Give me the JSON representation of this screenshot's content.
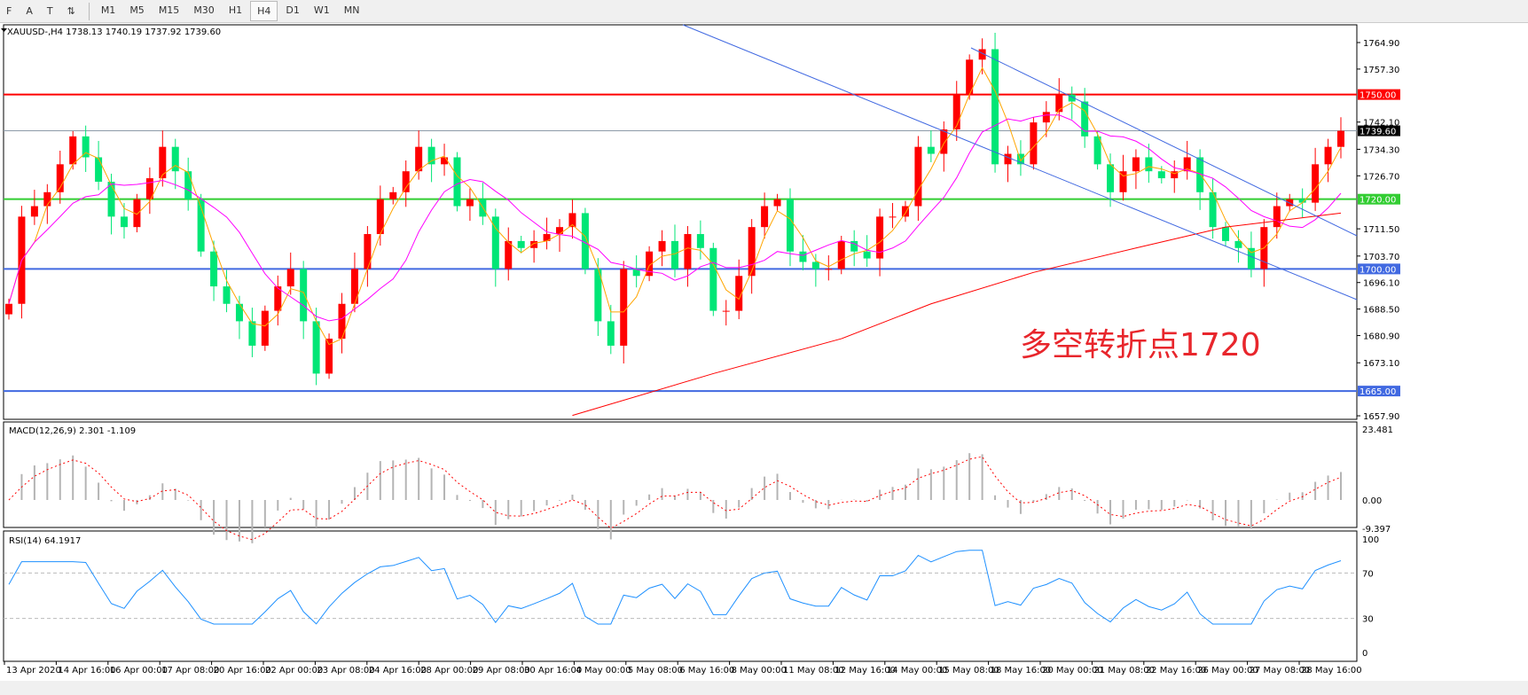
{
  "toolbar": {
    "tools": [
      "F",
      "A",
      "T",
      "⇅"
    ],
    "timeframes": [
      "M1",
      "M5",
      "M15",
      "M30",
      "H1",
      "H4",
      "D1",
      "W1",
      "MN"
    ],
    "active": "H4"
  },
  "chart_title": "XAUUSD-,H4  1738.13 1740.19 1737.92 1739.60",
  "annotation": "多空转折点1720",
  "chart_data": [
    {
      "type": "candlestick",
      "symbol": "XAUUSD-",
      "timeframe": "H4",
      "ohlc_last": [
        1738.13,
        1740.19,
        1737.92,
        1739.6
      ],
      "price_ticks": [
        "1764.90",
        "1757.30",
        "1742.10",
        "1734.30",
        "1726.70",
        "1711.50",
        "1703.70",
        "1696.10",
        "1688.50",
        "1680.90",
        "1673.10",
        "1657.90"
      ],
      "ylim": [
        1656,
        1770
      ],
      "levels": [
        {
          "price": "1750.00",
          "color": "#ff0000"
        },
        {
          "price": "1739.60",
          "color": "#000000",
          "current": true
        },
        {
          "price": "1720.00",
          "color": "#32cd32"
        },
        {
          "price": "1700.00",
          "color": "#4169e1"
        },
        {
          "price": "1665.00",
          "color": "#4169e1"
        }
      ],
      "colors": {
        "up": "#ff0000",
        "down": "#00e676",
        "ma_fast": "#ffa500",
        "ma_mid": "#ff00ff",
        "ma_slow": "#ff0000",
        "trend": "#4169e1"
      },
      "closes": [
        1690,
        1715,
        1718,
        1722,
        1730,
        1738,
        1732,
        1725,
        1715,
        1712,
        1720,
        1726,
        1735,
        1728,
        1720,
        1705,
        1695,
        1690,
        1685,
        1678,
        1688,
        1695,
        1700,
        1685,
        1670,
        1680,
        1690,
        1700,
        1710,
        1720,
        1722,
        1728,
        1735,
        1730,
        1732,
        1718,
        1720,
        1715,
        1700,
        1708,
        1706,
        1708,
        1710,
        1712,
        1716,
        1700,
        1685,
        1678,
        1700,
        1698,
        1705,
        1708,
        1700,
        1710,
        1706,
        1688,
        1688,
        1698,
        1712,
        1718,
        1720,
        1705,
        1702,
        1700,
        1700,
        1708,
        1705,
        1703,
        1715,
        1715,
        1718,
        1735,
        1733,
        1740,
        1750,
        1760,
        1763,
        1730,
        1733,
        1730,
        1742,
        1745,
        1750,
        1748,
        1738,
        1730,
        1722,
        1728,
        1732,
        1728,
        1726,
        1728,
        1732,
        1722,
        1712,
        1708,
        1706,
        1700,
        1712,
        1718,
        1720,
        1719,
        1730,
        1735,
        1739.6
      ],
      "ma_slow": [
        [
          44,
          1658
        ],
        [
          55,
          1670
        ],
        [
          65,
          1680
        ],
        [
          72,
          1690
        ],
        [
          80,
          1699
        ],
        [
          88,
          1706
        ],
        [
          95,
          1712
        ],
        [
          104,
          1716
        ]
      ],
      "xticks": [
        "13 Apr 2020",
        "14 Apr 16:00",
        "16 Apr 00:00",
        "17 Apr 08:00",
        "20 Apr 16:00",
        "22 Apr 00:00",
        "23 Apr 08:00",
        "24 Apr 16:00",
        "28 Apr 00:00",
        "29 Apr 08:00",
        "30 Apr 16:00",
        "4 May 00:00",
        "5 May 08:00",
        "6 May 16:00",
        "8 May 00:00",
        "11 May 08:00",
        "12 May 16:00",
        "14 May 00:00",
        "15 May 08:00",
        "18 May 16:00",
        "20 May 00:00",
        "21 May 08:00",
        "22 May 16:00",
        "26 May 00:00",
        "27 May 08:00",
        "28 May 16:00"
      ]
    },
    {
      "type": "bar+line",
      "title": "MACD(12,26,9) 2.301 -1.109",
      "yticks": [
        "23.481",
        "0.00",
        "-9.397"
      ],
      "ylim": [
        -9.397,
        23.481
      ]
    },
    {
      "type": "line",
      "title": "RSI(14) 64.1917",
      "yticks": [
        "100",
        "70",
        "30",
        "0"
      ],
      "ylim": [
        0,
        100
      ],
      "levels": [
        70,
        30
      ]
    }
  ]
}
